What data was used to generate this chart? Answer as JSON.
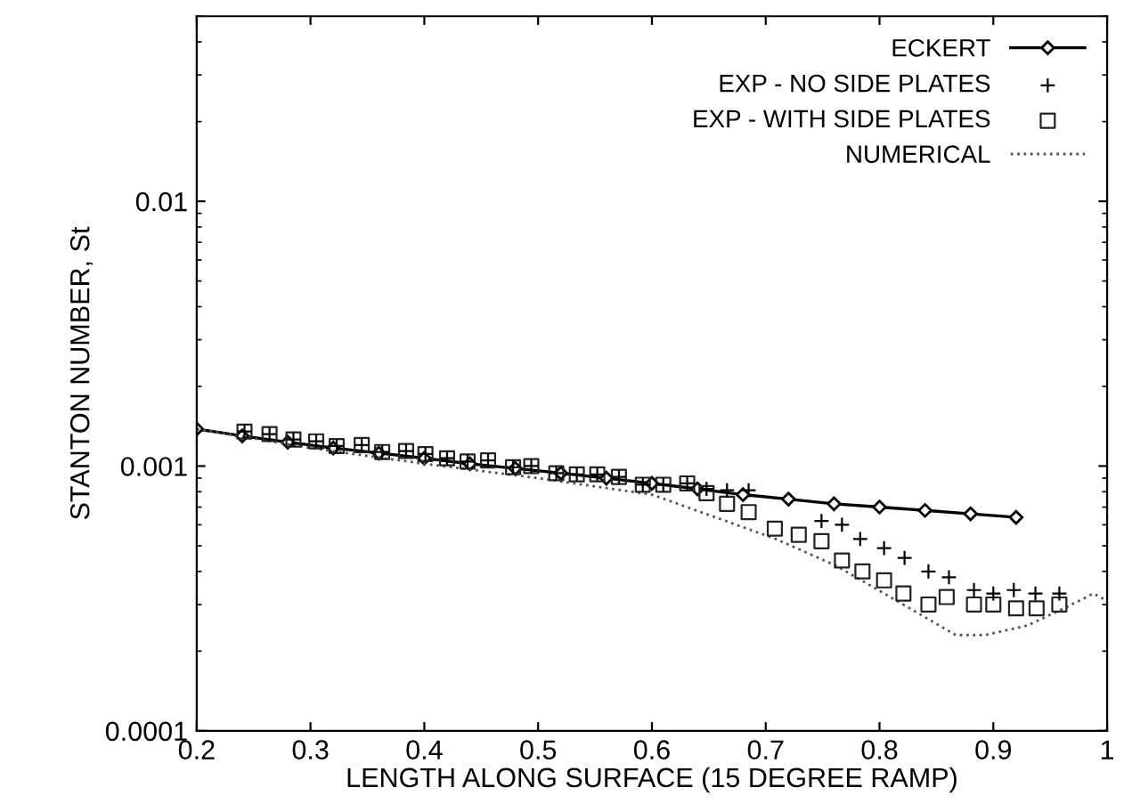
{
  "chart_data": {
    "type": "line",
    "xlabel": "LENGTH ALONG SURFACE (15 DEGREE RAMP)",
    "ylabel": "STANTON NUMBER, St",
    "log": "y",
    "xlim": [
      0.2,
      1
    ],
    "xticks": [
      0.2,
      0.3,
      0.4,
      0.5,
      0.6,
      0.7,
      0.8,
      0.9,
      {
        "value": 1,
        "label": "1"
      }
    ],
    "ylim": [
      0.0001,
      0.05
    ],
    "yticks": [
      0.0001,
      0.001,
      0.01
    ],
    "grid": false,
    "legend": "top right",
    "series": [
      {
        "name": "ECKERT",
        "marker": "diamond",
        "color": "#000000",
        "x": [
          0.2,
          0.24,
          0.28,
          0.32,
          0.36,
          0.4,
          0.44,
          0.48,
          0.52,
          0.56,
          0.6,
          0.64,
          0.68,
          0.72,
          0.76,
          0.8,
          0.84,
          0.88,
          0.92
        ],
        "values": [
          0.00138,
          0.0013,
          0.00123,
          0.00117,
          0.00112,
          0.00107,
          0.00102,
          0.00098,
          0.00094,
          0.0009,
          0.00086,
          0.00082,
          0.00078,
          0.00075,
          0.00072,
          0.0007,
          0.00068,
          0.00066,
          0.00064
        ]
      },
      {
        "name": "EXP - NO SIDE PLATES",
        "type": "scatter",
        "marker": "cross",
        "color": "#000000",
        "x": [
          0.242,
          0.264,
          0.285,
          0.305,
          0.323,
          0.345,
          0.363,
          0.384,
          0.401,
          0.42,
          0.438,
          0.456,
          0.478,
          0.494,
          0.516,
          0.534,
          0.552,
          0.571,
          0.592,
          0.61,
          0.631,
          0.648,
          0.666,
          0.685,
          0.749,
          0.767,
          0.783,
          0.804,
          0.822,
          0.843,
          0.861,
          0.883,
          0.9,
          0.918,
          0.937,
          0.958
        ],
        "values": [
          0.00135,
          0.00132,
          0.00126,
          0.00124,
          0.00119,
          0.0012,
          0.00113,
          0.00114,
          0.00111,
          0.00107,
          0.00104,
          0.00105,
          0.00099,
          0.001,
          0.00094,
          0.00093,
          0.00093,
          0.00091,
          0.00085,
          0.00085,
          0.00086,
          0.00082,
          0.00081,
          0.00081,
          0.00062,
          0.0006,
          0.00053,
          0.00049,
          0.00045,
          0.0004,
          0.00038,
          0.00034,
          0.00033,
          0.00034,
          0.00033,
          0.00033
        ]
      },
      {
        "name": "EXP - WITH SIDE PLATES",
        "type": "scatter",
        "marker": "square",
        "color": "#222222",
        "x": [
          0.242,
          0.264,
          0.285,
          0.305,
          0.323,
          0.345,
          0.363,
          0.384,
          0.401,
          0.42,
          0.438,
          0.456,
          0.478,
          0.494,
          0.516,
          0.534,
          0.552,
          0.571,
          0.592,
          0.61,
          0.631,
          0.648,
          0.666,
          0.685,
          0.708,
          0.729,
          0.749,
          0.767,
          0.785,
          0.804,
          0.821,
          0.843,
          0.859,
          0.883,
          0.9,
          0.92,
          0.938,
          0.958
        ],
        "values": [
          0.00135,
          0.00132,
          0.00126,
          0.00124,
          0.00119,
          0.0012,
          0.00113,
          0.00114,
          0.00111,
          0.00107,
          0.00104,
          0.00105,
          0.00099,
          0.001,
          0.00094,
          0.00093,
          0.00093,
          0.00091,
          0.00085,
          0.00085,
          0.00086,
          0.00079,
          0.00072,
          0.00067,
          0.00058,
          0.00055,
          0.00052,
          0.00044,
          0.0004,
          0.00037,
          0.00033,
          0.0003,
          0.00032,
          0.0003,
          0.0003,
          0.00029,
          0.00029,
          0.0003
        ]
      },
      {
        "name": "NUMERICAL",
        "marker": "none",
        "line_style": "dotted",
        "color": "#555555",
        "x": [
          0.2,
          0.3,
          0.4,
          0.5,
          0.6,
          0.656,
          0.709,
          0.762,
          0.815,
          0.867,
          0.893,
          0.93,
          0.962,
          0.988,
          1.0
        ],
        "values": [
          0.00138,
          0.00117,
          0.00102,
          0.0009,
          0.00078,
          0.00064,
          0.00053,
          0.00042,
          0.00031,
          0.00023,
          0.00023,
          0.00025,
          0.00029,
          0.00033,
          0.00031
        ]
      }
    ]
  }
}
